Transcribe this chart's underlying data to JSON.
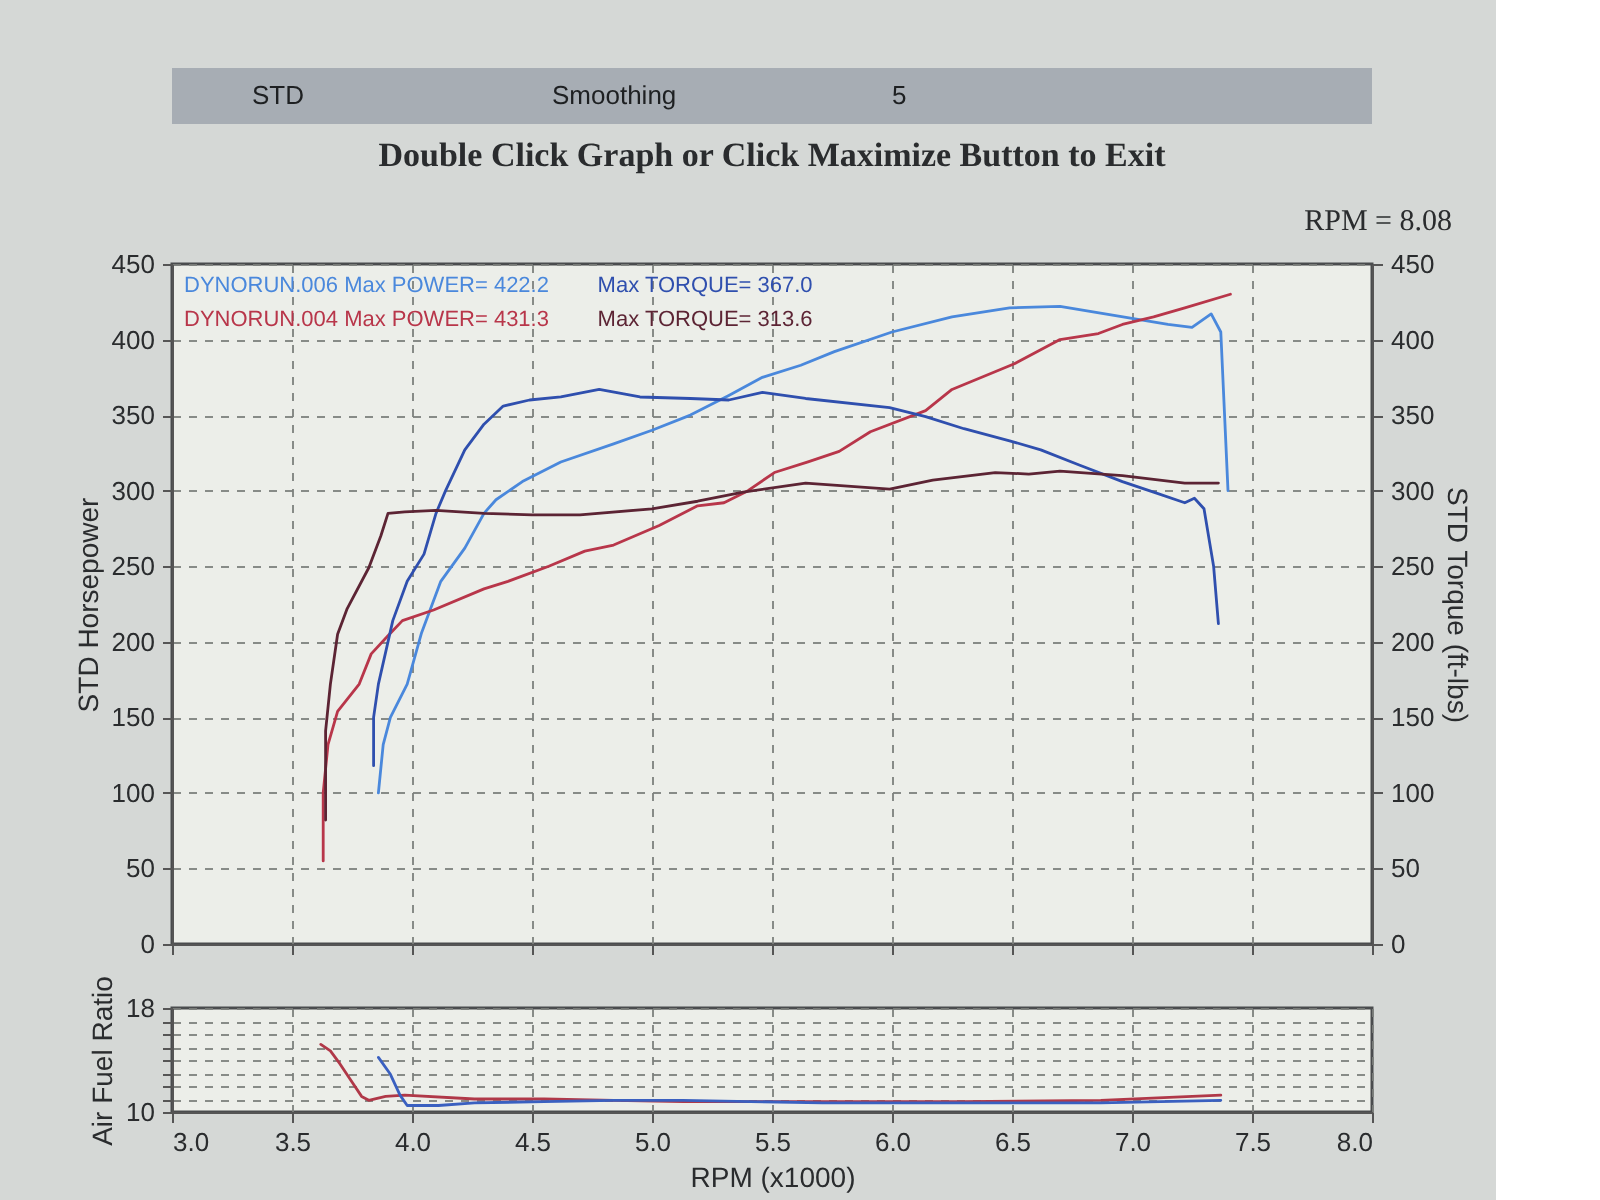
{
  "chart_data": [
    {
      "type": "other",
      "annotations": [
        "STD",
        "Smoothing",
        "5"
      ]
    },
    {
      "type": "line",
      "title": "Double Click Graph or Click Maximize Button to Exit",
      "ylabel": "STD Horsepower",
      "y2label": "STD Torque (ft-lbs)",
      "annotations": [
        "RPM = 8.08"
      ],
      "xlim": [
        3,
        8
      ],
      "xticks": [
        3,
        3.5,
        4,
        4.5,
        5,
        5.5,
        6,
        6.5,
        7,
        7.5,
        8
      ],
      "ylim": [
        0,
        450
      ],
      "yticks": [
        0,
        50,
        100,
        150,
        200,
        250,
        300,
        350,
        400,
        450
      ],
      "y2lim": [
        0,
        450
      ],
      "y2ticks": [
        0,
        50,
        100,
        150,
        200,
        250,
        300,
        350,
        400,
        450
      ],
      "grid": true,
      "legend": "top left",
      "tick_labels": "y",
      "series": [
        {
          "name": "DYNORUN.006 Max POWER= 422.2",
          "color": "#4a88dc",
          "axis": "y",
          "x": [
            3.86,
            3.88,
            3.91,
            3.98,
            4.04,
            4.12,
            4.22,
            4.3,
            4.35,
            4.46,
            4.62,
            4.84,
            5.0,
            5.16,
            5.32,
            5.46,
            5.62,
            5.76,
            6.0,
            6.25,
            6.49,
            6.7,
            6.85,
            7.0,
            7.15,
            7.25,
            7.33,
            7.37,
            7.4
          ],
          "values": [
            100,
            132,
            150,
            172,
            206,
            240,
            262,
            285,
            294,
            306,
            319,
            331,
            340,
            350,
            363,
            375,
            383,
            392,
            405,
            415,
            421,
            422,
            418,
            414,
            410,
            408,
            417,
            405,
            300
          ]
        },
        {
          "name": "Max TORQUE= 367.0",
          "color": "#2f4fae",
          "axis": "y2",
          "x": [
            3.84,
            3.84,
            3.86,
            3.92,
            3.98,
            4.05,
            4.1,
            4.14,
            4.22,
            4.3,
            4.38,
            4.49,
            4.62,
            4.78,
            4.95,
            5.16,
            5.32,
            5.46,
            5.64,
            5.99,
            6.14,
            6.3,
            6.49,
            6.62,
            6.78,
            6.96,
            7.09,
            7.22,
            7.26,
            7.3,
            7.34,
            7.36
          ],
          "values": [
            118,
            150,
            172,
            214,
            240,
            258,
            285,
            300,
            327,
            344,
            356,
            360,
            362,
            367,
            362,
            361,
            360,
            365,
            361,
            355,
            349,
            341,
            333,
            327,
            317,
            306,
            299,
            292,
            295,
            288,
            250,
            212
          ]
        },
        {
          "name": "DYNORUN.004 Max POWER= 431.3",
          "color": "#b8364a",
          "axis": "y",
          "x": [
            3.63,
            3.63,
            3.65,
            3.69,
            3.78,
            3.83,
            3.9,
            3.96,
            4.09,
            4.3,
            4.4,
            4.57,
            4.72,
            4.84,
            5.03,
            5.19,
            5.3,
            5.4,
            5.51,
            5.65,
            5.78,
            5.91,
            6.14,
            6.25,
            6.51,
            6.7,
            6.86,
            6.96,
            7.09,
            7.22,
            7.41
          ],
          "values": [
            55,
            100,
            132,
            154,
            172,
            192,
            204,
            214,
            221,
            235,
            240,
            250,
            260,
            264,
            277,
            290,
            292,
            300,
            312,
            319,
            326,
            339,
            353,
            367,
            384,
            400,
            404,
            410,
            415,
            421,
            430
          ]
        },
        {
          "name": "Max TORQUE= 313.6",
          "color": "#5c2434",
          "axis": "y2",
          "x": [
            3.64,
            3.64,
            3.64,
            3.66,
            3.69,
            3.73,
            3.82,
            3.87,
            3.9,
            3.97,
            4.1,
            4.3,
            4.5,
            4.7,
            5.0,
            5.19,
            5.38,
            5.64,
            5.99,
            6.17,
            6.43,
            6.57,
            6.7,
            6.96,
            7.22,
            7.36
          ],
          "values": [
            82,
            105,
            141,
            172,
            205,
            222,
            249,
            270,
            285,
            286,
            287,
            285,
            284,
            284,
            288,
            293,
            299,
            305,
            301,
            307,
            312,
            311,
            313,
            310,
            305,
            305
          ]
        }
      ]
    },
    {
      "type": "line",
      "xlabel": "RPM (x1000)",
      "ylabel": "Air Fuel Ratio",
      "xlim": [
        3,
        8
      ],
      "xticks": [
        {
          "value": 3,
          "label": "3.0"
        },
        3.5,
        {
          "value": 4,
          "label": "4.0"
        },
        4.5,
        {
          "value": 5,
          "label": "5.0"
        },
        5.5,
        {
          "value": 6,
          "label": "6.0"
        },
        6.5,
        {
          "value": 7,
          "label": "7.0"
        },
        7.5,
        {
          "value": 8,
          "label": "8.0"
        }
      ],
      "ylim": [
        10,
        18
      ],
      "yticks": [
        10,
        {
          "value": 11,
          "label": null
        },
        {
          "value": 12,
          "label": null
        },
        {
          "value": 13,
          "label": null
        },
        {
          "value": 14,
          "label": null
        },
        {
          "value": 15,
          "label": null
        },
        {
          "value": 16,
          "label": null
        },
        {
          "value": 17,
          "label": null
        },
        18
      ],
      "grid": true,
      "series": [
        {
          "color": "#b03848",
          "x": [
            3.62,
            3.66,
            3.7,
            3.75,
            3.79,
            3.82,
            3.89,
            3.97,
            4.26,
            4.55,
            4.84,
            5.13,
            5.71,
            6.29,
            6.87,
            7.37
          ],
          "values": [
            15.2,
            14.7,
            13.7,
            12.3,
            11.2,
            10.9,
            11.2,
            11.3,
            11.0,
            11.0,
            10.9,
            10.8,
            10.8,
            10.8,
            10.9,
            11.3
          ]
        },
        {
          "color": "#3a60c0",
          "x": [
            3.86,
            3.91,
            3.95,
            3.98,
            4.11,
            4.26,
            4.55,
            4.84,
            5.13,
            5.71,
            6.29,
            6.87,
            7.37
          ],
          "values": [
            14.2,
            12.9,
            11.3,
            10.5,
            10.5,
            10.7,
            10.8,
            10.9,
            10.9,
            10.7,
            10.7,
            10.7,
            10.9
          ]
        }
      ]
    }
  ]
}
